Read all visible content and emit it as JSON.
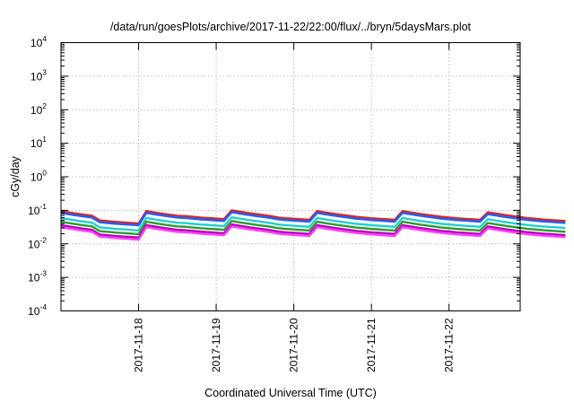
{
  "chart_data": {
    "type": "line",
    "title": "/data/run/goesPlots/archive/2017-11-22/22:00/flux/../bryn/5daysMars.plot",
    "xlabel": "Coordinated Universal Time (UTC)",
    "ylabel": "cGy/day",
    "yscale": "log",
    "ylim": [
      0.0001,
      10000
    ],
    "y_tick_labels": [
      {
        "base": "10",
        "exp": "-4"
      },
      {
        "base": "10",
        "exp": "-3"
      },
      {
        "base": "10",
        "exp": "-2"
      },
      {
        "base": "10",
        "exp": "-1"
      },
      {
        "base": "10",
        "exp": "0"
      },
      {
        "base": "10",
        "exp": "1"
      },
      {
        "base": "10",
        "exp": "2"
      },
      {
        "base": "10",
        "exp": "3"
      },
      {
        "base": "10",
        "exp": "4"
      }
    ],
    "xlim": [
      "2017-11-17T00:00",
      "2017-11-22T22:00"
    ],
    "x_ticks": [
      "2017-11-18",
      "2017-11-19",
      "2017-11-20",
      "2017-11-21",
      "2017-11-22"
    ],
    "grid": true,
    "legend": "none",
    "sample_period_hours": 2.4,
    "series": [
      {
        "color": "#d62728",
        "scale": 1.0
      },
      {
        "color": "#1f5fff",
        "scale": 0.88
      },
      {
        "color": "#1fd0d0",
        "scale": 0.62
      },
      {
        "color": "#2a9d2a",
        "scale": 0.48
      },
      {
        "color": "#b800b8",
        "scale": 0.38
      },
      {
        "color": "#ff40ff",
        "scale": 0.33
      }
    ],
    "reference_series_values_cGy_per_day": [
      0.095,
      0.087,
      0.08,
      0.074,
      0.069,
      0.064,
      0.061,
      0.058,
      0.056,
      0.054,
      0.052,
      0.095,
      0.087,
      0.08,
      0.074,
      0.069,
      0.064,
      0.061,
      0.058,
      0.056,
      0.054,
      0.052,
      0.095,
      0.087,
      0.08,
      0.074,
      0.069,
      0.064,
      0.061,
      0.058,
      0.056,
      0.054,
      0.052,
      0.095,
      0.087,
      0.08,
      0.074,
      0.069,
      0.064,
      0.061,
      0.058,
      0.056,
      0.054,
      0.052,
      0.095,
      0.087,
      0.08,
      0.074,
      0.069,
      0.064,
      0.061,
      0.058,
      0.056,
      0.054,
      0.052,
      0.095,
      0.087,
      0.08,
      0.074,
      0.069,
      0.064,
      0.061,
      0.058,
      0.056,
      0.054,
      0.052
    ]
  }
}
